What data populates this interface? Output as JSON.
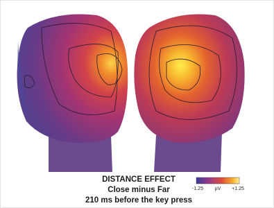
{
  "figure": {
    "caption": [
      "DISTANCE EFFECT",
      "Close minus Far",
      "210 ms before the key press"
    ],
    "colorbar": {
      "min_label": "-1.25",
      "unit_label": "µV",
      "max_label": "+1.25"
    }
  }
}
